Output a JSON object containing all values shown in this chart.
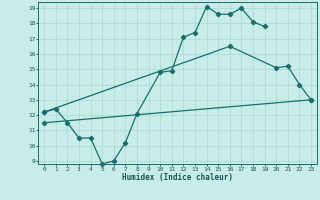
{
  "xlabel": "Humidex (Indice chaleur)",
  "background_color": "#c8ece8",
  "line_color": "#1a6e6e",
  "grid_color": "#a8d8d0",
  "xlim": [
    -0.5,
    23.5
  ],
  "ylim": [
    8.8,
    19.4
  ],
  "xticks": [
    0,
    1,
    2,
    3,
    4,
    5,
    6,
    7,
    8,
    9,
    10,
    11,
    12,
    13,
    14,
    15,
    16,
    17,
    18,
    19,
    20,
    21,
    22,
    23
  ],
  "yticks": [
    9,
    10,
    11,
    12,
    13,
    14,
    15,
    16,
    17,
    18,
    19
  ],
  "line1": {
    "x": [
      0,
      1,
      2,
      3,
      4,
      5,
      6,
      7,
      8,
      10,
      11,
      12,
      13,
      14,
      15,
      16,
      17,
      18,
      19
    ],
    "y": [
      12.2,
      12.4,
      11.5,
      10.5,
      10.5,
      8.8,
      9.0,
      10.2,
      12.1,
      14.8,
      14.9,
      17.1,
      17.4,
      19.1,
      18.6,
      18.6,
      19.0,
      18.1,
      17.8
    ]
  },
  "line2": {
    "x": [
      0,
      16,
      20,
      21,
      22,
      23
    ],
    "y": [
      12.2,
      16.5,
      15.1,
      15.2,
      14.0,
      13.0
    ]
  },
  "line3": {
    "x": [
      0,
      23
    ],
    "y": [
      11.5,
      13.0
    ]
  }
}
